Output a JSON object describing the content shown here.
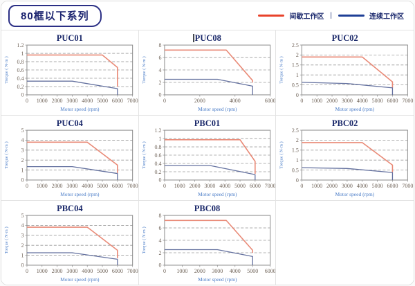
{
  "header": {
    "title": "80框以下系列"
  },
  "legend": {
    "intermittent_label": "间歇工作区",
    "separator": "|",
    "continuous_label": "连续工作区",
    "intermittent_color": "#e8432b",
    "continuous_color": "#1e3f96"
  },
  "colors": {
    "chart_red": "#e98a77",
    "chart_blue": "#64719f",
    "title_navy": "#1c2a6b",
    "axis_label_blue": "#4a7cc7",
    "tick_text": "#6f6358",
    "grid_line": "#9a9a9a",
    "frame": "#8a8a8a"
  },
  "chart_data": [
    {
      "type": "line",
      "title": "PUC01",
      "title_cursor": false,
      "xlabel": "Motor speed (rpm)",
      "ylabel": "Torque ( N·m )",
      "xlim": [
        0,
        7000
      ],
      "ylim": [
        0,
        1.2
      ],
      "xticks": [
        0,
        1000,
        2000,
        3000,
        4000,
        5000,
        6000,
        7000
      ],
      "yticks": [
        0,
        0.2,
        0.4,
        0.6,
        0.8,
        1,
        1.2
      ],
      "series": [
        {
          "name": "间歇工作区",
          "color_key": "chart_red",
          "points": [
            [
              0,
              0.96
            ],
            [
              5000,
              0.96
            ],
            [
              6000,
              0.66
            ],
            [
              6000,
              0.2
            ]
          ]
        },
        {
          "name": "连续工作区",
          "color_key": "chart_blue",
          "points": [
            [
              0,
              0.33
            ],
            [
              3000,
              0.33
            ],
            [
              6000,
              0.15
            ],
            [
              6000,
              0
            ]
          ]
        }
      ]
    },
    {
      "type": "line",
      "title": "PUC08",
      "title_cursor": true,
      "xlabel": "Motor speed (rpm)",
      "ylabel": "Torque ( N·m )",
      "xlim": [
        0,
        6000
      ],
      "ylim": [
        0,
        8
      ],
      "xticks": [
        0,
        2000,
        4000,
        6000
      ],
      "yticks": [
        0,
        2,
        4,
        6,
        8
      ],
      "series": [
        {
          "name": "间歇工作区",
          "color_key": "chart_red",
          "points": [
            [
              0,
              7.2
            ],
            [
              3500,
              7.2
            ],
            [
              5000,
              2.3
            ],
            [
              5000,
              2.0
            ]
          ]
        },
        {
          "name": "连续工作区",
          "color_key": "chart_blue",
          "points": [
            [
              0,
              2.5
            ],
            [
              3000,
              2.5
            ],
            [
              5000,
              1.4
            ],
            [
              5000,
              0
            ]
          ]
        }
      ]
    },
    {
      "type": "line",
      "title": "PUC02",
      "title_cursor": false,
      "xlabel": "Motor speed (rpm)",
      "ylabel": "Torque ( N·m )",
      "xlim": [
        0,
        7000
      ],
      "ylim": [
        0,
        2.5
      ],
      "xticks": [
        0,
        1000,
        2000,
        3000,
        4000,
        5000,
        6000,
        7000
      ],
      "yticks": [
        0,
        0.5,
        1,
        1.5,
        2,
        2.5
      ],
      "series": [
        {
          "name": "间歇工作区",
          "color_key": "chart_red",
          "points": [
            [
              0,
              1.9
            ],
            [
              4000,
              1.9
            ],
            [
              6000,
              0.65
            ],
            [
              6000,
              0.35
            ]
          ]
        },
        {
          "name": "连续工作区",
          "color_key": "chart_blue",
          "points": [
            [
              0,
              0.63
            ],
            [
              3000,
              0.57
            ],
            [
              6000,
              0.35
            ],
            [
              6000,
              0
            ]
          ]
        }
      ]
    },
    {
      "type": "line",
      "title": "PUC04",
      "title_cursor": false,
      "xlabel": "Motor speed (rpm)",
      "ylabel": "Torque ( N·m )",
      "xlim": [
        0,
        7000
      ],
      "ylim": [
        0,
        5
      ],
      "xticks": [
        0,
        1000,
        2000,
        3000,
        4000,
        5000,
        6000,
        7000
      ],
      "yticks": [
        0,
        1,
        2,
        3,
        4,
        5
      ],
      "series": [
        {
          "name": "间歇工作区",
          "color_key": "chart_red",
          "points": [
            [
              0,
              3.8
            ],
            [
              4000,
              3.8
            ],
            [
              6000,
              1.5
            ],
            [
              6000,
              0.7
            ]
          ]
        },
        {
          "name": "连续工作区",
          "color_key": "chart_blue",
          "points": [
            [
              0,
              1.35
            ],
            [
              3000,
              1.35
            ],
            [
              6000,
              0.65
            ],
            [
              6000,
              0
            ]
          ]
        }
      ]
    },
    {
      "type": "line",
      "title": "PBC01",
      "title_cursor": false,
      "xlabel": "Motor speed (rpm)",
      "ylabel": "Torque ( N·m )",
      "xlim": [
        0,
        7000
      ],
      "ylim": [
        0,
        1.2
      ],
      "xticks": [
        0,
        1000,
        2000,
        3000,
        4000,
        5000,
        6000,
        7000
      ],
      "yticks": [
        0,
        0.2,
        0.4,
        0.6,
        0.8,
        1,
        1.2
      ],
      "series": [
        {
          "name": "间歇工作区",
          "color_key": "chart_red",
          "points": [
            [
              0,
              0.97
            ],
            [
              5000,
              0.97
            ],
            [
              6000,
              0.45
            ],
            [
              6000,
              0.15
            ]
          ]
        },
        {
          "name": "连续工作区",
          "color_key": "chart_blue",
          "points": [
            [
              0,
              0.35
            ],
            [
              3000,
              0.35
            ],
            [
              6000,
              0.13
            ],
            [
              6000,
              0
            ]
          ]
        }
      ]
    },
    {
      "type": "line",
      "title": "PBC02",
      "title_cursor": false,
      "xlabel": "Motor speed (rpm)",
      "ylabel": "Torque ( N·m )",
      "xlim": [
        0,
        7000
      ],
      "ylim": [
        0,
        2.5
      ],
      "xticks": [
        0,
        1000,
        2000,
        3000,
        4000,
        5000,
        6000,
        7000
      ],
      "yticks": [
        0,
        0.5,
        1,
        1.5,
        2,
        2.5
      ],
      "series": [
        {
          "name": "间歇工作区",
          "color_key": "chart_red",
          "points": [
            [
              0,
              1.88
            ],
            [
              4000,
              1.88
            ],
            [
              6000,
              0.75
            ],
            [
              6000,
              0.4
            ]
          ]
        },
        {
          "name": "连续工作区",
          "color_key": "chart_blue",
          "points": [
            [
              0,
              0.62
            ],
            [
              3000,
              0.58
            ],
            [
              6000,
              0.38
            ],
            [
              6000,
              0
            ]
          ]
        }
      ]
    },
    {
      "type": "line",
      "title": "PBC04",
      "title_cursor": false,
      "xlabel": "Motor speed (rpm)",
      "ylabel": "Torque ( N·m )",
      "xlim": [
        0,
        7000
      ],
      "ylim": [
        0,
        5
      ],
      "xticks": [
        0,
        1000,
        2000,
        3000,
        4000,
        5000,
        6000,
        7000
      ],
      "yticks": [
        0,
        1,
        2,
        3,
        4,
        5
      ],
      "series": [
        {
          "name": "间歇工作区",
          "color_key": "chart_red",
          "points": [
            [
              0,
              3.82
            ],
            [
              4000,
              3.82
            ],
            [
              6000,
              1.5
            ],
            [
              6000,
              0.7
            ]
          ]
        },
        {
          "name": "连续工作区",
          "color_key": "chart_blue",
          "points": [
            [
              0,
              1.25
            ],
            [
              3000,
              1.25
            ],
            [
              6000,
              0.6
            ],
            [
              6000,
              0
            ]
          ]
        }
      ]
    },
    {
      "type": "line",
      "title": "PBC08",
      "title_cursor": false,
      "xlabel": "Motor speed (rpm)",
      "ylabel": "Torque ( N·m )",
      "xlim": [
        0,
        6000
      ],
      "ylim": [
        0,
        8
      ],
      "xticks": [
        0,
        1000,
        2000,
        3000,
        4000,
        5000,
        6000
      ],
      "yticks": [
        0,
        2,
        4,
        6,
        8
      ],
      "series": [
        {
          "name": "间歇工作区",
          "color_key": "chart_red",
          "points": [
            [
              0,
              7.2
            ],
            [
              3500,
              7.2
            ],
            [
              5000,
              2.4
            ],
            [
              5000,
              2.0
            ]
          ]
        },
        {
          "name": "连续工作区",
          "color_key": "chart_blue",
          "points": [
            [
              0,
              2.5
            ],
            [
              3000,
              2.5
            ],
            [
              5000,
              1.4
            ],
            [
              5000,
              0
            ]
          ]
        }
      ]
    }
  ]
}
